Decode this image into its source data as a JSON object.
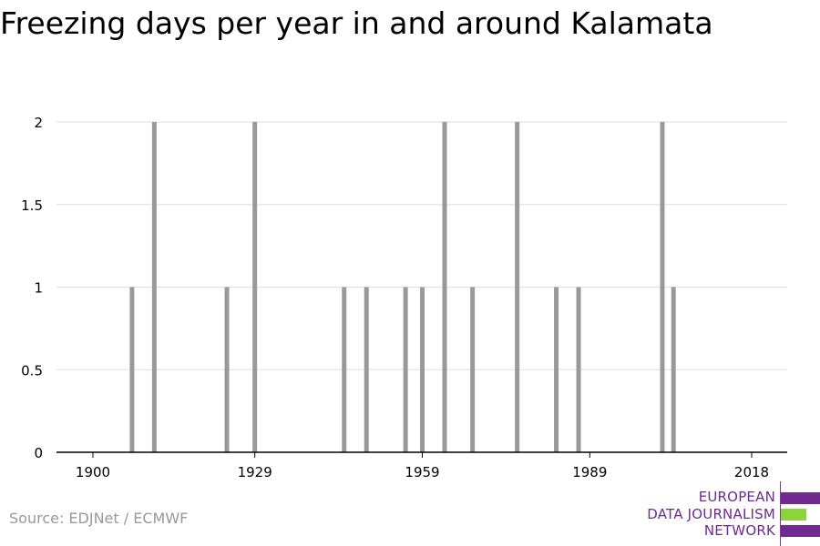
{
  "title": "Freezing days per year in and around Kalamata",
  "source": "Source: EDJNet / ECMWF",
  "logo": {
    "lines": [
      "EUROPEAN",
      "DATA JOURNALISM",
      "NETWORK"
    ],
    "colors": {
      "purple": "#6e2a8e",
      "green": "#8cd43c"
    }
  },
  "colors": {
    "bar": "#999999",
    "grid": "#dddddd",
    "axis": "#000000",
    "tick_text": "#000000"
  },
  "chart_data": {
    "type": "bar",
    "title": "Freezing days per year in and around Kalamata",
    "xlabel": "",
    "ylabel": "",
    "xlim": [
      1900,
      2018
    ],
    "ylim": [
      0,
      2
    ],
    "x_ticks": [
      1900,
      1929,
      1959,
      1989,
      2018
    ],
    "y_ticks": [
      0,
      0.5,
      1,
      1.5,
      2
    ],
    "y_tick_labels": [
      "0",
      "0.5",
      "1",
      "1.5",
      "2"
    ],
    "grid": true,
    "x": [
      1907,
      1911,
      1924,
      1929,
      1945,
      1949,
      1956,
      1959,
      1963,
      1968,
      1976,
      1983,
      1987,
      2002,
      2004
    ],
    "values": [
      1,
      2,
      1,
      2,
      1,
      1,
      1,
      1,
      2,
      1,
      2,
      1,
      1,
      2,
      1
    ]
  }
}
